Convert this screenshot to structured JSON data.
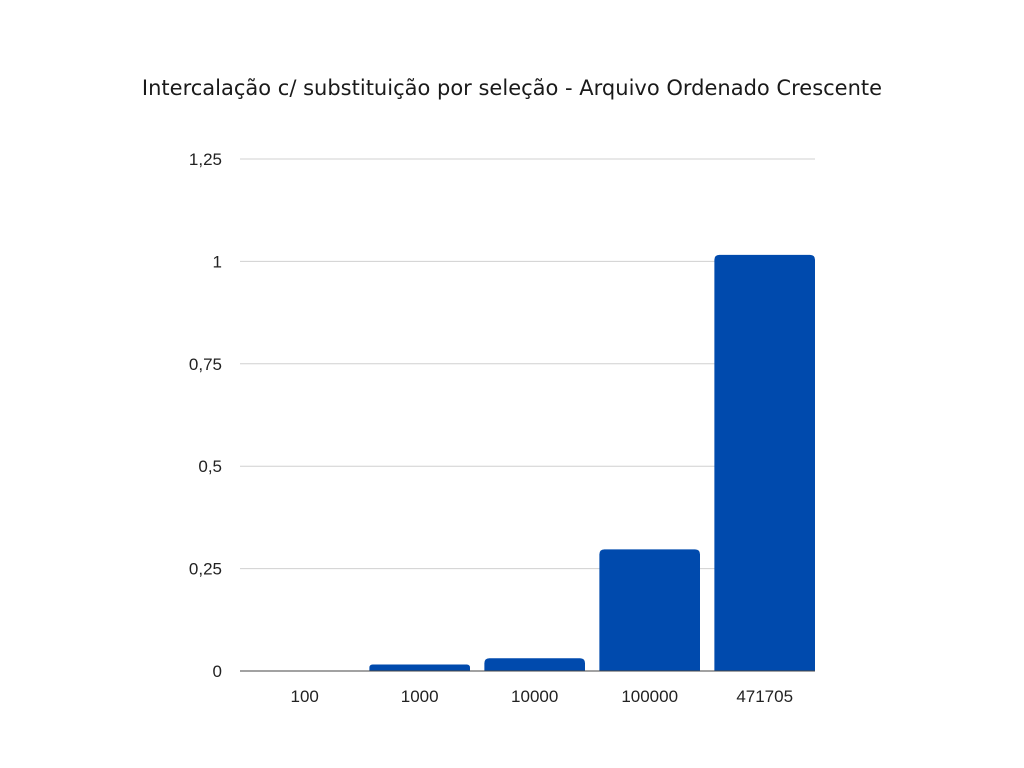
{
  "chart_data": {
    "type": "bar",
    "title": "Intercalação c/ substituição por seleção - Arquivo Ordenado Crescente",
    "xlabel": "",
    "ylabel": "",
    "categories": [
      "100",
      "1000",
      "10000",
      "100000",
      "471705"
    ],
    "values": [
      0.001,
      0.016,
      0.031,
      0.297,
      1.016
    ],
    "ylim": [
      0,
      1.25
    ],
    "yticks": [
      {
        "value": 0,
        "label": "0"
      },
      {
        "value": 0.25,
        "label": "0,25"
      },
      {
        "value": 0.5,
        "label": "0,5"
      },
      {
        "value": 0.75,
        "label": "0,75"
      },
      {
        "value": 1,
        "label": "1"
      },
      {
        "value": 1.25,
        "label": "1,25"
      }
    ],
    "grid": true,
    "legend": "none",
    "bar_color": "#004aad",
    "grid_color": "#d0d0d0",
    "axis_color": "#444444"
  }
}
